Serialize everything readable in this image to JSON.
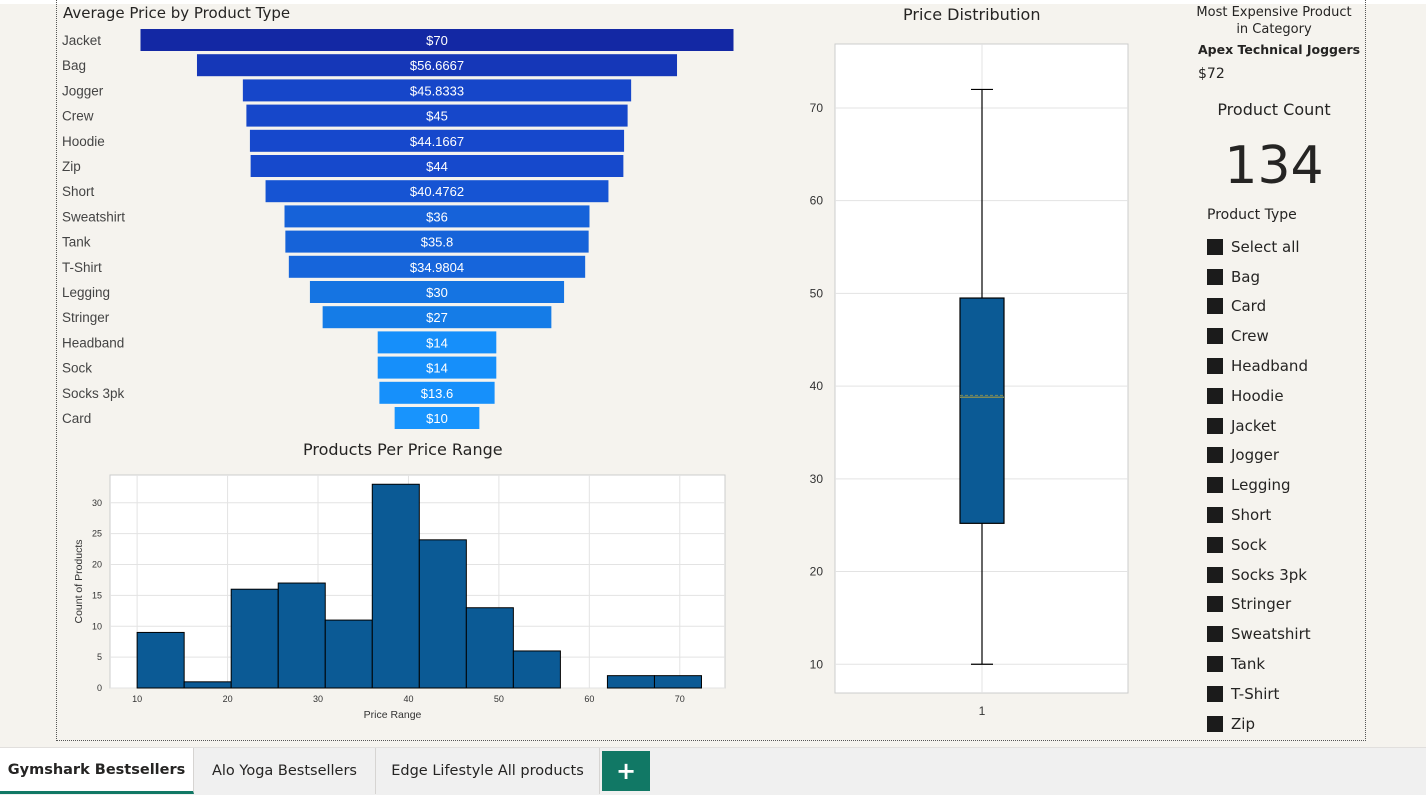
{
  "funnel": {
    "title": "Average Price by Product Type",
    "chart_data": {
      "type": "bar",
      "categories": [
        "Jacket",
        "Bag",
        "Jogger",
        "Crew",
        "Hoodie",
        "Zip",
        "Short",
        "Sweatshirt",
        "Tank",
        "T-Shirt",
        "Legging",
        "Stringer",
        "Headband",
        "Sock",
        "Socks 3pk",
        "Card"
      ],
      "values": [
        70,
        56.6667,
        45.8333,
        45,
        44.1667,
        44,
        40.4762,
        36,
        35.8,
        34.9804,
        30,
        27,
        14,
        14,
        13.6,
        10
      ],
      "labels": [
        "$70",
        "$56.6667",
        "$45.8333",
        "$45",
        "$44.1667",
        "$44",
        "$40.4762",
        "$36",
        "$35.8",
        "$34.9804",
        "$30",
        "$27",
        "$14",
        "$14",
        "$13.6",
        "$10"
      ],
      "colors": [
        "#1328a4",
        "#1537b8",
        "#1646c9",
        "#1647ca",
        "#1648cc",
        "#1649cc",
        "#1654d3",
        "#1662d9",
        "#1663d9",
        "#1665db",
        "#1574e2",
        "#157ce7",
        "#168ffa",
        "#168ffa",
        "#1690fb",
        "#1894fd"
      ]
    }
  },
  "histogram": {
    "title": "Products Per Price Range",
    "chart_data": {
      "type": "bar",
      "bins": [
        [
          10,
          15.2
        ],
        [
          15.2,
          20.4
        ],
        [
          20.4,
          25.6
        ],
        [
          25.6,
          30.8
        ],
        [
          30.8,
          36
        ],
        [
          36,
          41.2
        ],
        [
          41.2,
          46.4
        ],
        [
          46.4,
          51.6
        ],
        [
          51.6,
          56.8
        ],
        [
          56.8,
          62
        ],
        [
          62,
          67.2
        ],
        [
          67.2,
          72.4
        ]
      ],
      "values": [
        9,
        1,
        16,
        17,
        11,
        33,
        24,
        13,
        6,
        0,
        2,
        2
      ],
      "xlabel": "Price Range",
      "ylabel": "Count of Products",
      "xticks": [
        "10",
        "20",
        "30",
        "40",
        "50",
        "60",
        "70"
      ],
      "yticks": [
        "0",
        "5",
        "10",
        "15",
        "20",
        "25",
        "30"
      ],
      "xlim": [
        7,
        75
      ],
      "ylim": [
        0,
        34.5
      ],
      "color": "#0b5a95",
      "grid": true
    }
  },
  "boxplot": {
    "title": "Price Distribution",
    "chart_data": {
      "type": "box",
      "category": "1",
      "min": 10,
      "q1": 25.2,
      "median": 38.8,
      "mean": 39,
      "q3": 49.5,
      "max": 72,
      "yticks": [
        "10",
        "20",
        "30",
        "40",
        "50",
        "60",
        "70"
      ],
      "ylim": [
        6.9,
        76.9
      ],
      "color": "#0b5a95",
      "grid": true
    }
  },
  "card": {
    "title": "Most Expensive Product in Category",
    "product_name": "Apex Technical Joggers",
    "price": "$72"
  },
  "count": {
    "title": "Product Count",
    "value": "134"
  },
  "slicer": {
    "title": "Product Type",
    "items": [
      "Select all",
      "Bag",
      "Card",
      "Crew",
      "Headband",
      "Hoodie",
      "Jacket",
      "Jogger",
      "Legging",
      "Short",
      "Sock",
      "Socks 3pk",
      "Stringer",
      "Sweatshirt",
      "Tank",
      "T-Shirt",
      "Zip"
    ]
  },
  "tabs": {
    "items": [
      "Gymshark Bestsellers",
      "Alo Yoga Bestsellers",
      "Edge Lifestyle All products"
    ],
    "active": 0,
    "add_label": "+"
  }
}
